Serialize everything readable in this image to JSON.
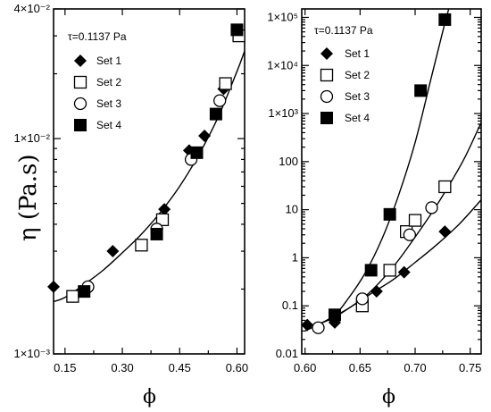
{
  "chart_data": [
    {
      "type": "scatter",
      "panel": "left",
      "y_scale": "log",
      "xlim": [
        0.12,
        0.62
      ],
      "ylim": [
        0.001,
        0.04
      ],
      "xticks": [
        0.15,
        0.3,
        0.45,
        0.6
      ],
      "xtick_labels": [
        "0.15",
        "0.30",
        "0.45",
        "0.60"
      ],
      "yticks": [
        0.001,
        0.01,
        0.04
      ],
      "ytick_labels": [
        "1×10⁻³",
        "1×10⁻²",
        "4×10⁻²"
      ],
      "xlabel": "ϕ",
      "ylabel": "η (Pa.s)",
      "annotation": "τ=0.1137 Pa",
      "legend_position": "top-left",
      "grid": false,
      "series": [
        {
          "name": "Set 1",
          "marker": "filled-diamond",
          "x": [
            0.12,
            0.275,
            0.41,
            0.475,
            0.515,
            0.565
          ],
          "y": [
            0.00205,
            0.003,
            0.0047,
            0.0088,
            0.0103,
            0.017
          ]
        },
        {
          "name": "Set 2",
          "marker": "open-square",
          "x": [
            0.17,
            0.35,
            0.405,
            0.57,
            0.605
          ],
          "y": [
            0.00185,
            0.0032,
            0.0042,
            0.018,
            0.03
          ]
        },
        {
          "name": "Set 3",
          "marker": "open-circle",
          "x": [
            0.21,
            0.39,
            0.48,
            0.555
          ],
          "y": [
            0.00205,
            0.0038,
            0.008,
            0.015
          ]
        },
        {
          "name": "Set 4",
          "marker": "filled-square",
          "x": [
            0.2,
            0.39,
            0.495,
            0.545,
            0.6
          ],
          "y": [
            0.00195,
            0.0036,
            0.0086,
            0.013,
            0.032
          ]
        }
      ],
      "fit_curve": {
        "x": [
          0.12,
          0.15,
          0.2,
          0.25,
          0.3,
          0.35,
          0.4,
          0.45,
          0.5,
          0.55,
          0.6,
          0.62
        ],
        "y": [
          0.00175,
          0.00183,
          0.0021,
          0.00245,
          0.00295,
          0.0036,
          0.00455,
          0.006,
          0.0084,
          0.0125,
          0.0205,
          0.0255
        ]
      }
    },
    {
      "type": "scatter",
      "panel": "right",
      "y_scale": "log",
      "xlim": [
        0.597,
        0.76
      ],
      "ylim": [
        0.01,
        150000
      ],
      "xticks": [
        0.6,
        0.65,
        0.7,
        0.75
      ],
      "xtick_labels": [
        "0.60",
        "0.65",
        "0.70",
        "0.75"
      ],
      "yticks": [
        0.01,
        0.1,
        1,
        10,
        100,
        1000,
        10000,
        100000
      ],
      "ytick_labels": [
        "0.01",
        "0.1",
        "1",
        "10",
        "100",
        "1×10³",
        "1×10⁴",
        "1×10⁵"
      ],
      "xlabel": "ϕ",
      "annotation": "τ=0.1137 Pa",
      "legend_position": "top-left",
      "grid": false,
      "series": [
        {
          "name": "Set 1",
          "marker": "filled-diamond",
          "x": [
            0.602,
            0.627,
            0.665,
            0.69,
            0.727
          ],
          "y": [
            0.04,
            0.045,
            0.2,
            0.5,
            3.5
          ]
        },
        {
          "name": "Set 2",
          "marker": "open-square",
          "x": [
            0.652,
            0.677,
            0.692,
            0.7,
            0.727
          ],
          "y": [
            0.1,
            0.55,
            3.5,
            6.0,
            30
          ]
        },
        {
          "name": "Set 3",
          "marker": "open-circle",
          "x": [
            0.612,
            0.652,
            0.695,
            0.715
          ],
          "y": [
            0.035,
            0.14,
            3.0,
            11
          ]
        },
        {
          "name": "Set 4",
          "marker": "filled-square",
          "x": [
            0.627,
            0.66,
            0.677,
            0.705,
            0.727
          ],
          "y": [
            0.065,
            0.55,
            8.0,
            3000,
            90000
          ]
        }
      ],
      "fit_curves": [
        {
          "x": [
            0.6,
            0.625,
            0.64,
            0.655,
            0.67,
            0.685,
            0.7,
            0.715,
            0.725,
            0.732
          ],
          "y": [
            0.03,
            0.06,
            0.15,
            0.5,
            2.5,
            20,
            250,
            6000,
            50000,
            200000
          ]
        },
        {
          "x": [
            0.61,
            0.625,
            0.64,
            0.655,
            0.67,
            0.685,
            0.7,
            0.715,
            0.73,
            0.745,
            0.76
          ],
          "y": [
            0.04,
            0.055,
            0.09,
            0.16,
            0.35,
            0.9,
            2.7,
            8.5,
            30,
            120,
            650
          ]
        },
        {
          "x": [
            0.62,
            0.64,
            0.66,
            0.68,
            0.7,
            0.72,
            0.74,
            0.76
          ],
          "y": [
            0.05,
            0.09,
            0.18,
            0.35,
            0.8,
            1.9,
            5.0,
            16
          ]
        }
      ]
    }
  ]
}
